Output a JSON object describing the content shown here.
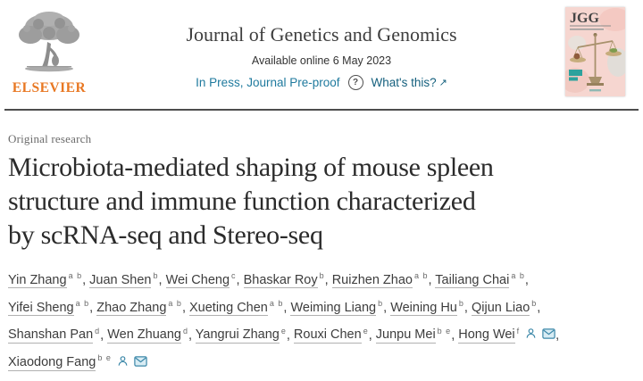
{
  "header": {
    "logo": {
      "brand": "ELSEVIER"
    },
    "journal_title": "Journal of Genetics and Genomics",
    "available_online": "Available online 6 May 2023",
    "in_press_label": "In Press, Journal Pre-proof",
    "help_icon_glyph": "?",
    "whats_this_label": "What's this?",
    "external_arrow_glyph": "↗",
    "cover_title": "JGG"
  },
  "article": {
    "category": "Original research",
    "title": "Microbiota-mediated shaping of mouse spleen structure and immune function characterized by scRNA-seq and Stereo-seq",
    "title_lines": [
      "Microbiota-mediated shaping of mouse spleen",
      "structure and immune function characterized",
      "by scRNA-seq and Stereo-seq"
    ]
  },
  "authors": [
    {
      "name": "Yin Zhang",
      "sup": "a b"
    },
    {
      "name": "Juan Shen",
      "sup": "b"
    },
    {
      "name": "Wei Cheng",
      "sup": "c"
    },
    {
      "name": "Bhaskar Roy",
      "sup": "b"
    },
    {
      "name": "Ruizhen Zhao",
      "sup": "a b"
    },
    {
      "name": "Tailiang Chai",
      "sup": "a b"
    },
    {
      "name": "Yifei Sheng",
      "sup": "a b"
    },
    {
      "name": "Zhao Zhang",
      "sup": "a b"
    },
    {
      "name": "Xueting Chen",
      "sup": "a b"
    },
    {
      "name": "Weiming Liang",
      "sup": "b"
    },
    {
      "name": "Weining Hu",
      "sup": "b"
    },
    {
      "name": "Qijun Liao",
      "sup": "b"
    },
    {
      "name": "Shanshan Pan",
      "sup": "d"
    },
    {
      "name": "Wen Zhuang",
      "sup": "d"
    },
    {
      "name": "Yangrui Zhang",
      "sup": "e"
    },
    {
      "name": "Rouxi Chen",
      "sup": "e"
    },
    {
      "name": "Junpu Mei",
      "sup": "b e"
    },
    {
      "name": "Hong Wei",
      "sup": "f",
      "icons": [
        "person-icon",
        "email-icon"
      ]
    },
    {
      "name": "Xiaodong Fang",
      "sup": "b e",
      "icons": [
        "person-icon",
        "email-icon"
      ]
    }
  ],
  "colors": {
    "link_teal": "#1f7a9e",
    "whats_this_teal": "#15607e",
    "elsevier_orange": "#e87722",
    "divider_gray": "#4d4d4d",
    "title_ink": "#2b2b2b",
    "author_ink": "#3d3d3d",
    "cover_pink": "#f6d6d0",
    "icon_teal": "#3b87a8"
  }
}
